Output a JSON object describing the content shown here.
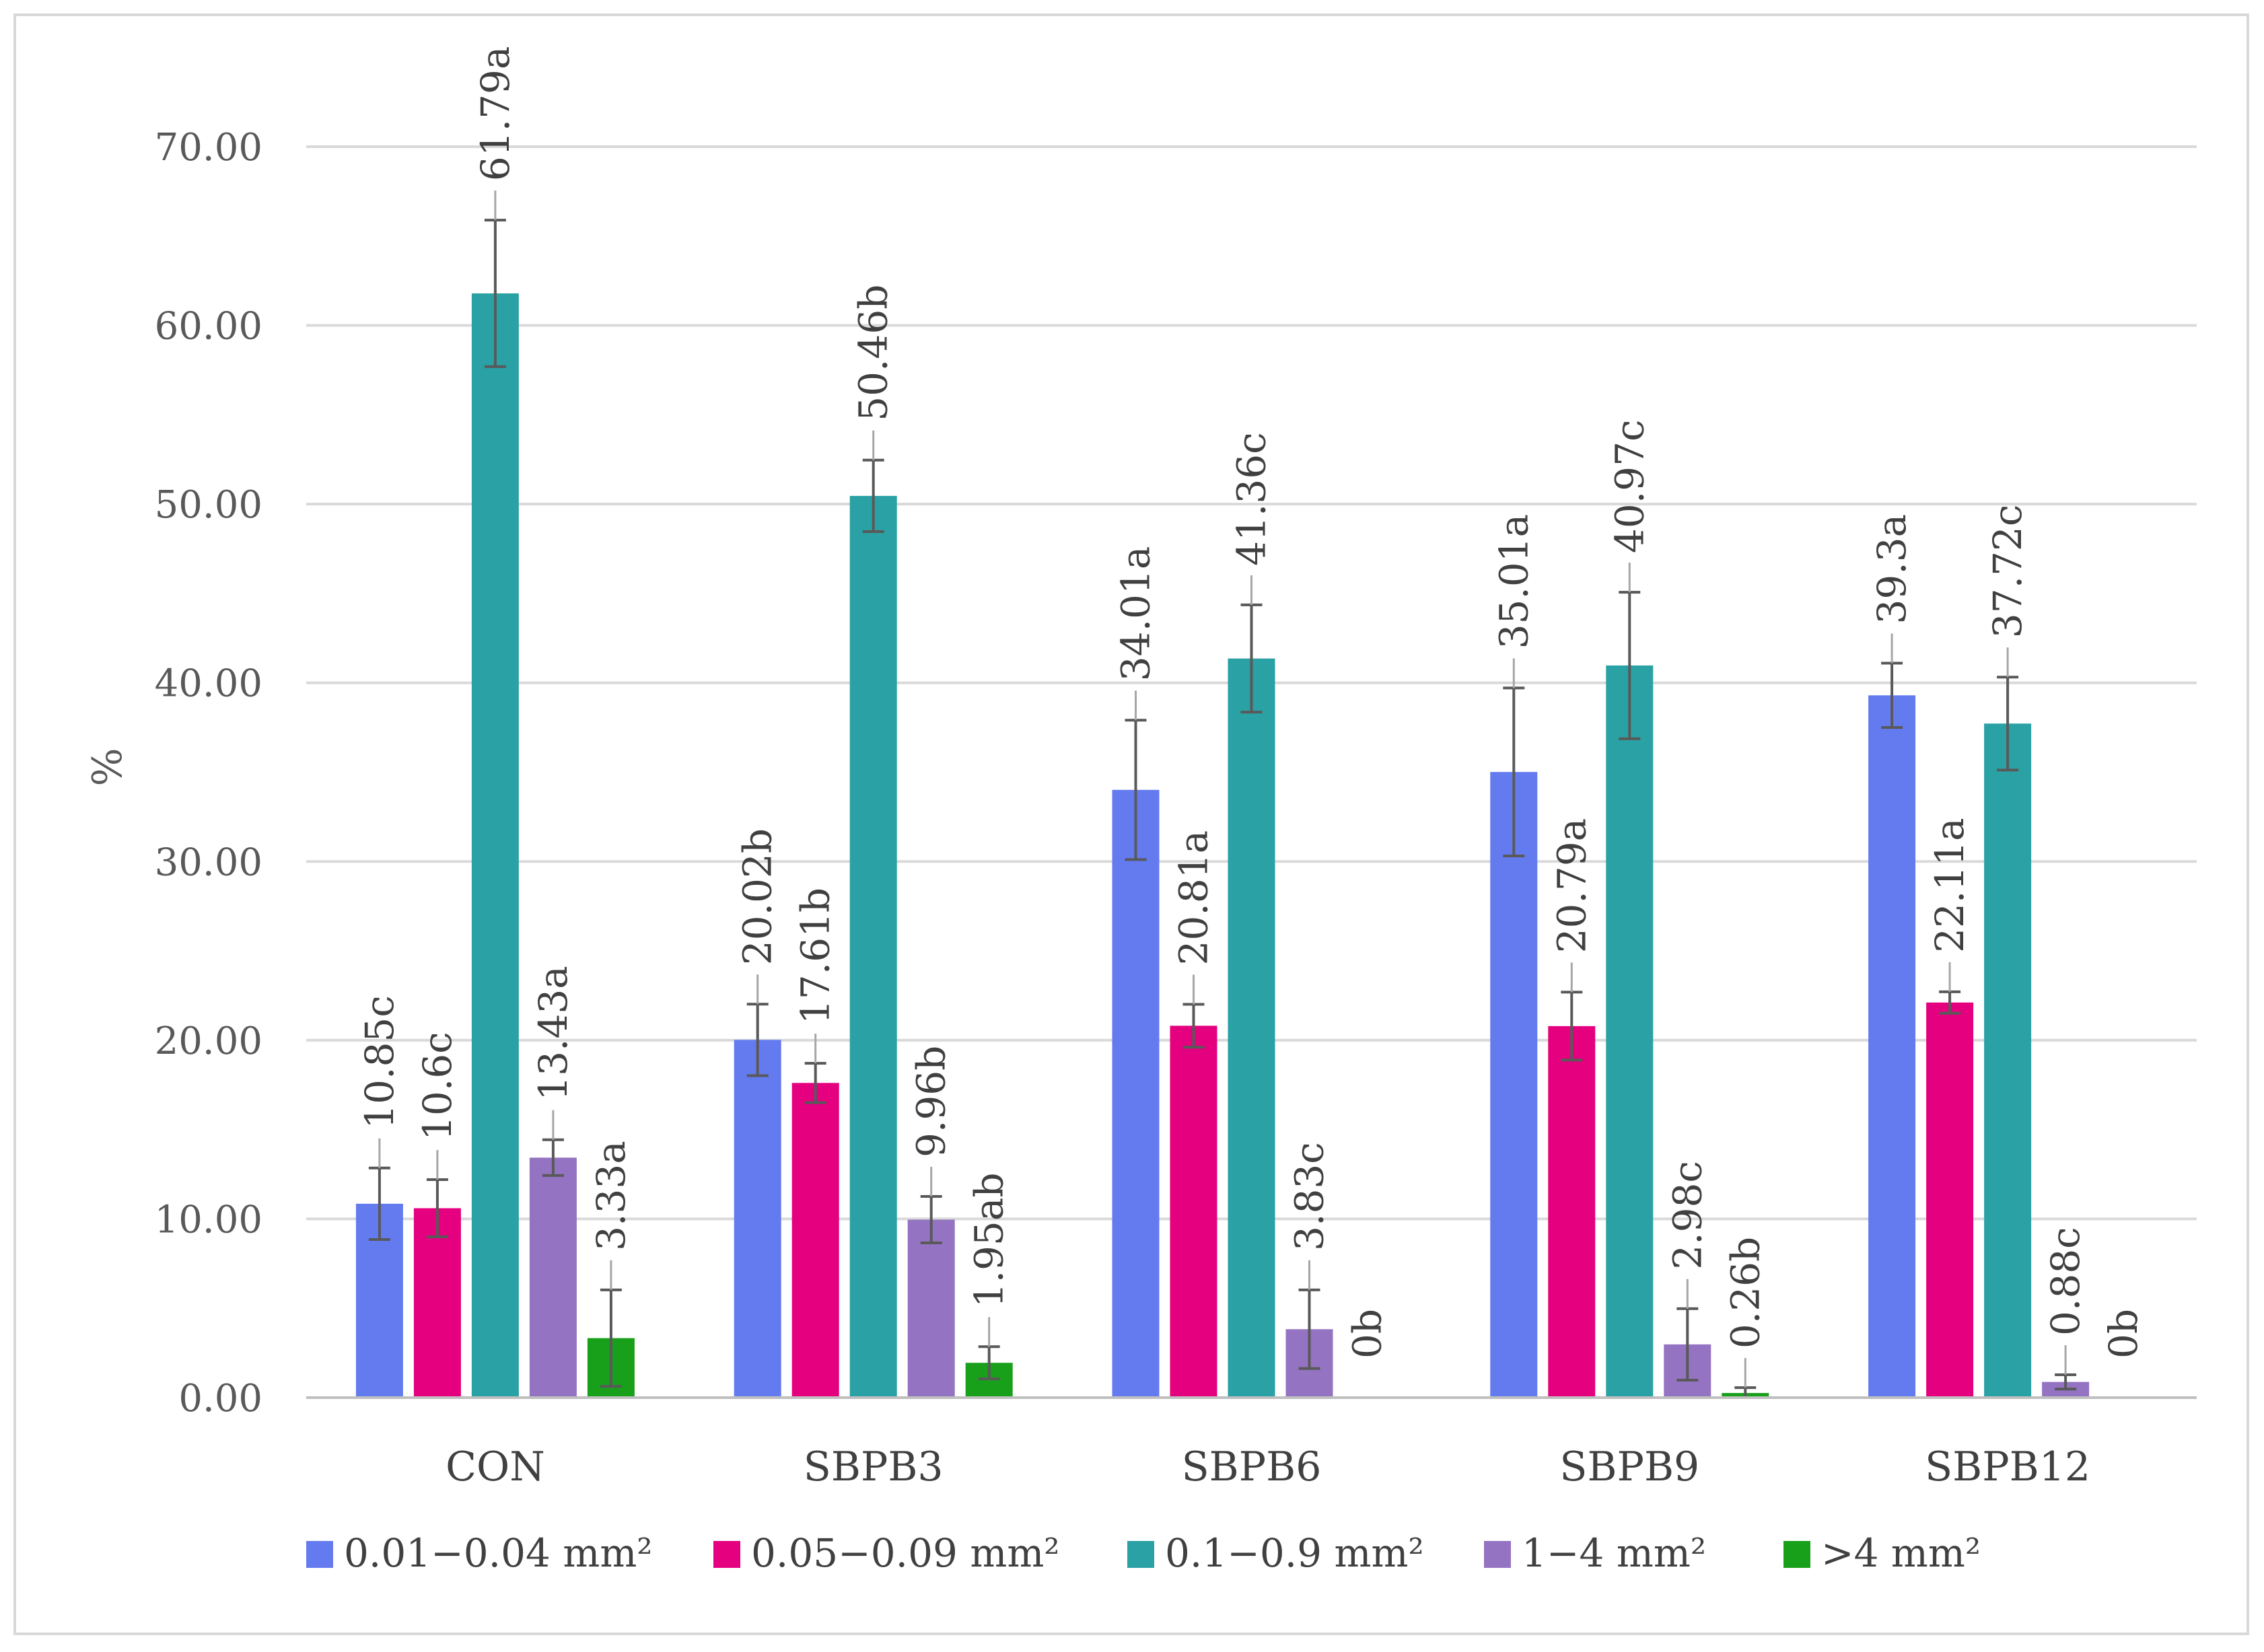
{
  "chart_data": {
    "type": "bar",
    "title": "",
    "xlabel": "",
    "ylabel": "%",
    "ylim": [
      0,
      70
    ],
    "yticks": [
      "0.00",
      "10.00",
      "20.00",
      "30.00",
      "40.00",
      "50.00",
      "60.00",
      "70.00"
    ],
    "grid": true,
    "legend_position": "bottom",
    "categories": [
      "CON",
      "SBPB3",
      "SBPB6",
      "SBPB9",
      "SBPB12"
    ],
    "series": [
      {
        "name": "0.01−0.04 mm²",
        "color": "#647bf0",
        "values": [
          10.85,
          20.02,
          34.01,
          35.01,
          39.3
        ],
        "errors": [
          2.0,
          2.0,
          3.9,
          4.7,
          1.8
        ],
        "labels": [
          "10.85c",
          "20.02b",
          "34.01a",
          "35.01a",
          "39.3a"
        ]
      },
      {
        "name": "0.05−0.09 mm²",
        "color": "#e4007f",
        "values": [
          10.6,
          17.61,
          20.81,
          20.79,
          22.11
        ],
        "errors": [
          1.6,
          1.1,
          1.2,
          1.9,
          0.6
        ],
        "labels": [
          "10.6c",
          "17.61b",
          "20.81a",
          "20.79a",
          "22.11a"
        ]
      },
      {
        "name": "0.1−0.9 mm²",
        "color": "#2aa1a4",
        "values": [
          61.79,
          50.46,
          41.36,
          40.97,
          37.72
        ],
        "errors": [
          4.1,
          2.0,
          3.0,
          4.1,
          2.6
        ],
        "labels": [
          "61.79a",
          "50.46b",
          "41.36c",
          "40.97c",
          "37.72c"
        ]
      },
      {
        "name": "1−4 mm²",
        "color": "#9473c2",
        "values": [
          13.43,
          9.96,
          3.83,
          2.98,
          0.88
        ],
        "errors": [
          1.0,
          1.3,
          2.2,
          2.0,
          0.4
        ],
        "labels": [
          "13.43a",
          "9.96b",
          "3.83c",
          "2.98c",
          "0.88c"
        ]
      },
      {
        "name": ">4 mm²",
        "color": "#19a01b",
        "values": [
          3.33,
          1.95,
          0,
          0.26,
          0
        ],
        "errors": [
          2.7,
          0.9,
          0,
          0.3,
          0
        ],
        "labels": [
          "3.33a",
          "1.95ab",
          "0b",
          "0.26b",
          "0b"
        ]
      }
    ]
  }
}
